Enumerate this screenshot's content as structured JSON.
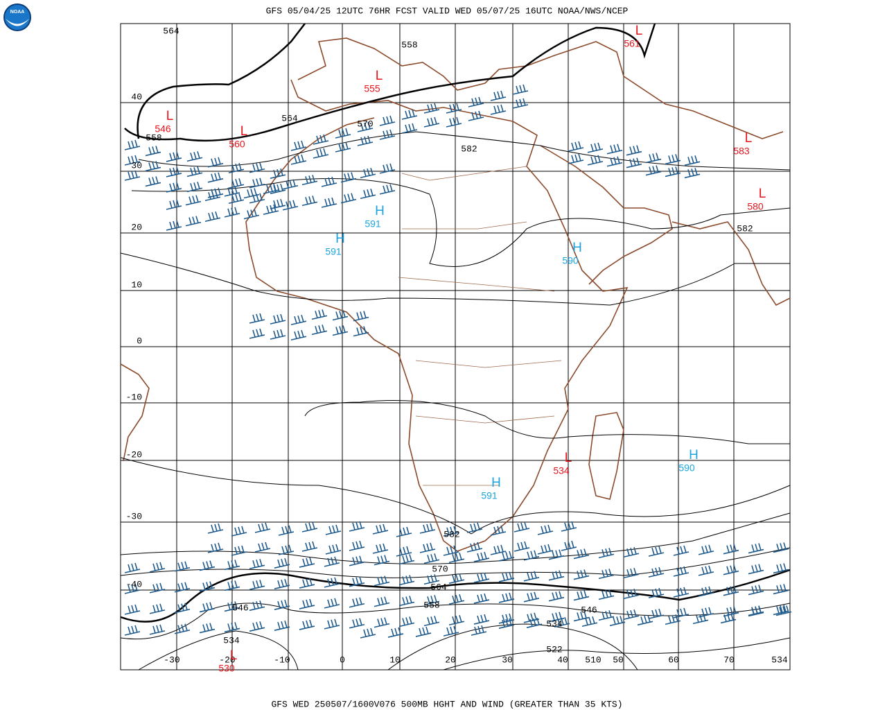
{
  "header": {
    "title": "GFS 05/04/25 12UTC 76HR FCST VALID WED 05/07/25 16UTC NOAA/NWS/NCEP"
  },
  "logo": {
    "label": "NOAA"
  },
  "footer": {
    "caption": "GFS WED 250507/1600V076 500MB HGHT AND WIND (GREATER THAN 35 KTS)"
  },
  "map": {
    "lat_labels": [
      40,
      30,
      20,
      10,
      0,
      -10,
      -20,
      -30,
      -40
    ],
    "lon_labels": [
      -30,
      -20,
      -10,
      0,
      10,
      20,
      30,
      40,
      50,
      60,
      70
    ],
    "centers": [
      {
        "symbol": "L",
        "value": 561
      },
      {
        "symbol": "L",
        "value": 555
      },
      {
        "symbol": "L",
        "value": 546
      },
      {
        "symbol": "L",
        "value": 560
      },
      {
        "symbol": "L",
        "value": 583
      },
      {
        "symbol": "L",
        "value": 580
      },
      {
        "symbol": "H",
        "value": 591
      },
      {
        "symbol": "H",
        "value": 591
      },
      {
        "symbol": "H",
        "value": 590
      },
      {
        "symbol": "L",
        "value": 534
      },
      {
        "symbol": "H",
        "value": 590
      },
      {
        "symbol": "H",
        "value": 591
      },
      {
        "symbol": "L",
        "value": 530
      }
    ],
    "contour_labels": [
      564,
      558,
      564,
      570,
      558,
      582,
      582,
      582,
      570,
      564,
      558,
      546,
      546,
      534,
      534,
      522,
      510,
      534
    ]
  }
}
